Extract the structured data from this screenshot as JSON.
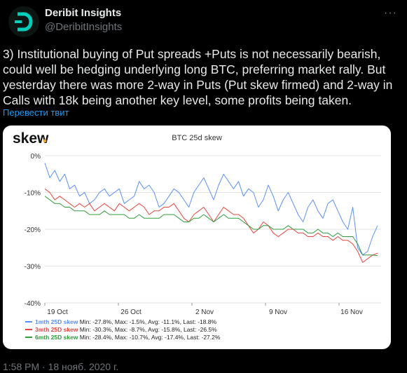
{
  "author": {
    "name": "Deribit Insights",
    "handle": "@DeribitInsights",
    "avatar_color": "#00cfbe"
  },
  "tweet": {
    "text": "3) Institutional buying of Put spreads +Puts is not necessarily bearish, could well be hedging underlying long BTC, preferring market rally. But yesterday there was more 2-way in Puts (Put skew firmed) and 2-way in Calls with 18k being another key level, some profits being taken.",
    "translate_label": "Перевести твит",
    "timestamp": "1:58 PM · 18 нояб. 2020 г."
  },
  "chart_data": {
    "type": "line",
    "brand": "skew",
    "brand_dot_color": "#f5a623",
    "title": "BTC 25d skew",
    "x_ticks": [
      "19 Oct",
      "26 Oct",
      "2 Nov",
      "9 Nov",
      "16 Nov"
    ],
    "y_ticks": [
      "0%",
      "-10%",
      "-20%",
      "-30%",
      "-40%"
    ],
    "ylim": [
      -40,
      0
    ],
    "x_range_days": [
      0,
      32
    ],
    "grid": "horizontal",
    "legend_position": "bottom-left",
    "series": [
      {
        "name": "1mth 25D skew",
        "stats": "Min: -27.8%, Max: -1.5%, Avg: -11.1%, Last: -18.8%",
        "color": "#5b8ff9",
        "values": [
          -2,
          -6,
          -4,
          -7,
          -5,
          -9,
          -8,
          -11,
          -10,
          -13,
          -12,
          -10,
          -9,
          -11,
          -10,
          -9,
          -13,
          -12,
          -11,
          -7,
          -9,
          -8,
          -10,
          -14,
          -13,
          -11,
          -9,
          -10,
          -12,
          -14,
          -10,
          -8,
          -6,
          -9,
          -12,
          -8,
          -5,
          -7,
          -9,
          -7,
          -11,
          -9,
          -10,
          -14,
          -12,
          -8,
          -11,
          -15,
          -12,
          -10,
          -13,
          -16,
          -18,
          -14,
          -12,
          -15,
          -17,
          -13,
          -12,
          -15,
          -18,
          -20,
          -14,
          -25,
          -27,
          -26,
          -22,
          -19
        ]
      },
      {
        "name": "3mth 25D skew",
        "stats": "Min: -30.3%, Max: -8.7%, Avg: -15.8%, Last: -26.5%",
        "color": "#e8453c",
        "values": [
          -9,
          -10,
          -12,
          -11,
          -12,
          -13,
          -14,
          -13,
          -14,
          -13,
          -15,
          -14,
          -13,
          -14,
          -15,
          -13,
          -14,
          -15,
          -14,
          -13,
          -14,
          -16,
          -15,
          -15,
          -14,
          -14,
          -13,
          -15,
          -17,
          -18,
          -16,
          -15,
          -14,
          -16,
          -18,
          -16,
          -14,
          -15,
          -16,
          -16,
          -17,
          -19,
          -21,
          -20,
          -18,
          -19,
          -21,
          -22,
          -21,
          -20,
          -20,
          -21,
          -21,
          -22,
          -22,
          -21,
          -22,
          -22,
          -23,
          -22,
          -23,
          -23,
          -24,
          -26,
          -29,
          -28,
          -27,
          -26.5
        ]
      },
      {
        "name": "6mth 25D skew",
        "stats": "Min: -28.4%, Max: -10.7%, Avg: -17.4%, Last: -27.2%",
        "color": "#2e9e3a",
        "values": [
          -11,
          -12,
          -13,
          -13,
          -14,
          -14,
          -15,
          -15,
          -15,
          -16,
          -16,
          -16,
          -15,
          -16,
          -16,
          -16,
          -16,
          -17,
          -17,
          -16,
          -17,
          -17,
          -17,
          -17,
          -16,
          -16,
          -16,
          -17,
          -18,
          -18,
          -17,
          -17,
          -16,
          -17,
          -18,
          -17,
          -16,
          -17,
          -17,
          -17,
          -18,
          -19,
          -20,
          -20,
          -19,
          -19,
          -20,
          -20,
          -20,
          -19,
          -20,
          -20,
          -20,
          -21,
          -21,
          -20,
          -21,
          -21,
          -22,
          -21,
          -22,
          -22,
          -22,
          -24,
          -27,
          -27,
          -27,
          -27.2
        ]
      }
    ]
  }
}
